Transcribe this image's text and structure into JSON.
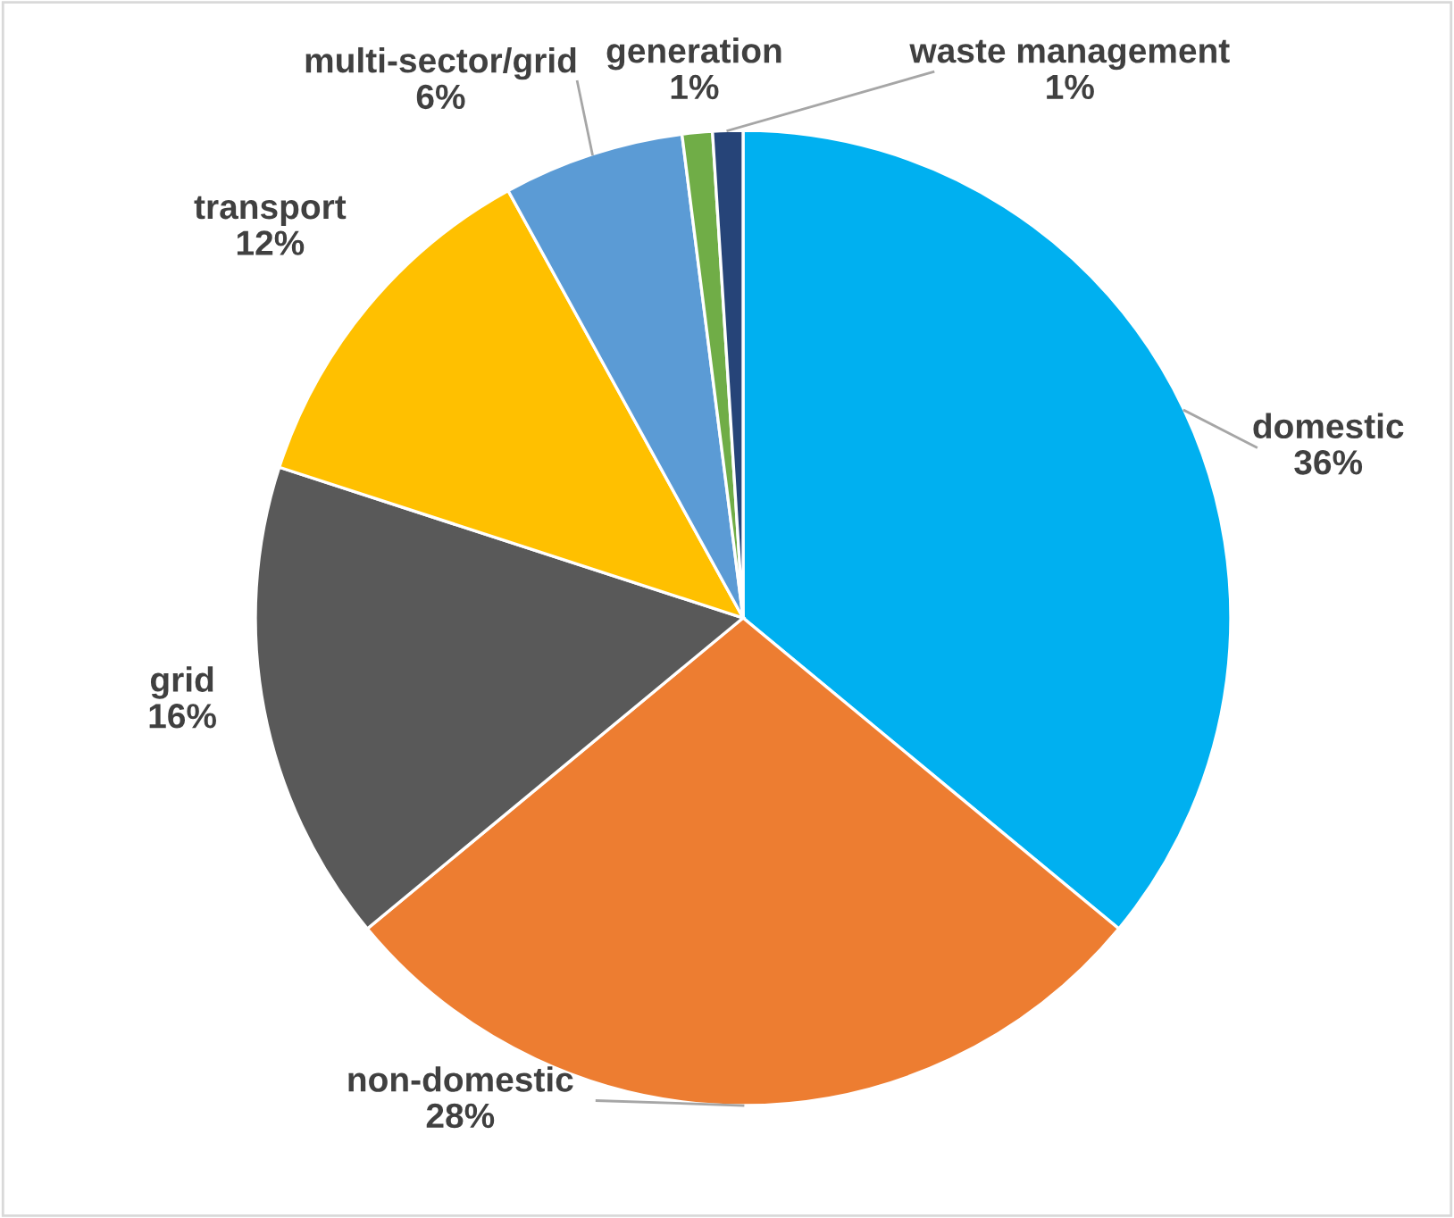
{
  "chart_data": {
    "type": "pie",
    "categories": [
      "domestic",
      "non-domestic",
      "grid",
      "transport",
      "multi-sector/grid",
      "generation",
      "waste management"
    ],
    "values": [
      36,
      28,
      16,
      12,
      6,
      1,
      1
    ],
    "colors": [
      "#00b0f0",
      "#ed7d31",
      "#595959",
      "#ffc000",
      "#5b9bd5",
      "#70ad47",
      "#264478"
    ],
    "value_labels": [
      "36%",
      "28%",
      "16%",
      "12%",
      "6%",
      "1%",
      "1%"
    ]
  }
}
